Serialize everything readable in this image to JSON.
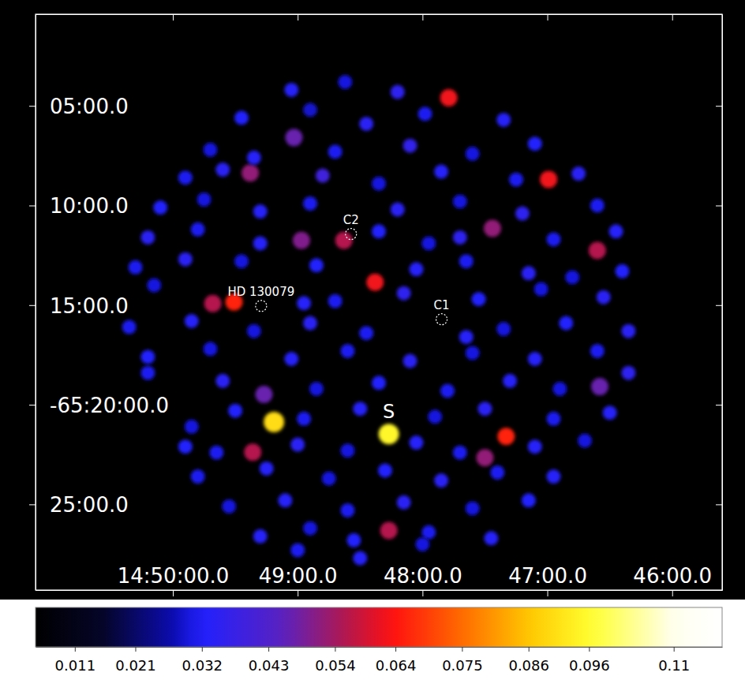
{
  "chart_data": {
    "type": "image",
    "xlim": [
      51.1,
      45.6
    ],
    "xticks": [
      {
        "value": 50,
        "label": "14:50:00.0"
      },
      {
        "value": 49,
        "label": "49:00.0"
      },
      {
        "value": 48,
        "label": "48:00.0"
      },
      {
        "value": 47,
        "label": "47:00.0"
      },
      {
        "value": 46,
        "label": "46:00.0"
      }
    ],
    "ylim": [
      -3929.3,
      -3900.4
    ],
    "yticks": [
      {
        "value": -3905,
        "label": "05:00.0"
      },
      {
        "value": -3910,
        "label": "10:00.0"
      },
      {
        "value": -3915,
        "label": "15:00.0"
      },
      {
        "value": -3920,
        "label": "-65:20:00.0"
      },
      {
        "value": -3925,
        "label": "25:00.0"
      }
    ],
    "cells": [
      [
        48.27,
        -3921.47,
        0.095
      ],
      [
        49.19,
        -3920.87,
        0.09
      ],
      [
        49.51,
        -3914.84,
        0.066
      ],
      [
        49.68,
        -3914.92,
        0.056
      ],
      [
        47.79,
        -3904.6,
        0.062
      ],
      [
        46.99,
        -3908.69,
        0.062
      ],
      [
        46.6,
        -3912.26,
        0.056
      ],
      [
        47.44,
        -3911.15,
        0.052
      ],
      [
        48.38,
        -3913.85,
        0.062
      ],
      [
        48.63,
        -3911.75,
        0.056
      ],
      [
        48.97,
        -3911.75,
        0.05
      ],
      [
        49.38,
        -3908.37,
        0.052
      ],
      [
        49.03,
        -3906.59,
        0.047
      ],
      [
        47.33,
        -3921.59,
        0.066
      ],
      [
        47.5,
        -3922.66,
        0.052
      ],
      [
        49.36,
        -3922.38,
        0.056
      ],
      [
        48.27,
        -3926.31,
        0.056
      ],
      [
        49.27,
        -3919.48,
        0.047
      ],
      [
        46.58,
        -3919.09,
        0.047
      ],
      [
        49.05,
        -3904.2,
        0.033
      ],
      [
        48.62,
        -3903.8,
        0.03
      ],
      [
        48.2,
        -3904.3,
        0.035
      ],
      [
        49.45,
        -3905.6,
        0.032
      ],
      [
        48.9,
        -3905.2,
        0.029
      ],
      [
        48.45,
        -3905.9,
        0.034
      ],
      [
        47.98,
        -3905.4,
        0.031
      ],
      [
        47.35,
        -3905.7,
        0.033
      ],
      [
        49.7,
        -3907.2,
        0.03
      ],
      [
        49.35,
        -3907.6,
        0.033
      ],
      [
        48.7,
        -3907.3,
        0.031
      ],
      [
        48.1,
        -3907.0,
        0.036
      ],
      [
        47.6,
        -3907.4,
        0.03
      ],
      [
        47.1,
        -3906.9,
        0.032
      ],
      [
        49.9,
        -3908.6,
        0.031
      ],
      [
        49.6,
        -3908.2,
        0.034
      ],
      [
        48.8,
        -3908.5,
        0.039
      ],
      [
        48.35,
        -3908.9,
        0.03
      ],
      [
        47.85,
        -3908.3,
        0.033
      ],
      [
        47.25,
        -3908.7,
        0.031
      ],
      [
        46.75,
        -3908.4,
        0.034
      ],
      [
        50.1,
        -3910.1,
        0.032
      ],
      [
        49.75,
        -3909.7,
        0.03
      ],
      [
        49.3,
        -3910.3,
        0.033
      ],
      [
        48.9,
        -3909.9,
        0.031
      ],
      [
        48.2,
        -3910.2,
        0.034
      ],
      [
        47.7,
        -3909.8,
        0.03
      ],
      [
        47.2,
        -3910.4,
        0.035
      ],
      [
        46.6,
        -3910.0,
        0.031
      ],
      [
        50.2,
        -3911.6,
        0.034
      ],
      [
        49.8,
        -3911.2,
        0.031
      ],
      [
        49.3,
        -3911.9,
        0.033
      ],
      [
        48.35,
        -3911.3,
        0.032
      ],
      [
        47.95,
        -3911.9,
        0.03
      ],
      [
        47.7,
        -3911.6,
        0.035
      ],
      [
        46.95,
        -3911.7,
        0.031
      ],
      [
        46.45,
        -3911.3,
        0.033
      ],
      [
        50.3,
        -3913.1,
        0.031
      ],
      [
        49.9,
        -3912.7,
        0.034
      ],
      [
        49.45,
        -3912.8,
        0.03
      ],
      [
        48.85,
        -3913.0,
        0.032
      ],
      [
        48.05,
        -3913.2,
        0.033
      ],
      [
        47.65,
        -3912.8,
        0.031
      ],
      [
        47.15,
        -3913.4,
        0.034
      ],
      [
        46.8,
        -3913.6,
        0.03
      ],
      [
        46.4,
        -3913.3,
        0.032
      ],
      [
        50.15,
        -3914.0,
        0.03
      ],
      [
        48.95,
        -3914.9,
        0.033
      ],
      [
        48.7,
        -3914.8,
        0.031
      ],
      [
        48.15,
        -3914.4,
        0.035
      ],
      [
        47.55,
        -3914.7,
        0.032
      ],
      [
        47.05,
        -3914.2,
        0.03
      ],
      [
        46.55,
        -3914.6,
        0.034
      ],
      [
        50.35,
        -3916.1,
        0.031
      ],
      [
        49.85,
        -3915.8,
        0.033
      ],
      [
        49.35,
        -3916.3,
        0.03
      ],
      [
        48.9,
        -3915.9,
        0.034
      ],
      [
        48.45,
        -3916.4,
        0.031
      ],
      [
        47.65,
        -3916.6,
        0.033
      ],
      [
        47.35,
        -3916.2,
        0.03
      ],
      [
        46.85,
        -3915.9,
        0.032
      ],
      [
        46.35,
        -3916.3,
        0.034
      ],
      [
        50.2,
        -3917.6,
        0.032
      ],
      [
        49.7,
        -3917.2,
        0.03
      ],
      [
        49.05,
        -3917.7,
        0.033
      ],
      [
        48.6,
        -3917.3,
        0.031
      ],
      [
        48.1,
        -3917.8,
        0.034
      ],
      [
        47.6,
        -3917.4,
        0.03
      ],
      [
        47.1,
        -3917.7,
        0.033
      ],
      [
        46.6,
        -3917.3,
        0.031
      ],
      [
        50.2,
        -3918.4,
        0.031
      ],
      [
        49.6,
        -3918.8,
        0.034
      ],
      [
        48.85,
        -3919.2,
        0.03
      ],
      [
        48.35,
        -3918.9,
        0.032
      ],
      [
        47.8,
        -3919.3,
        0.031
      ],
      [
        47.3,
        -3918.8,
        0.033
      ],
      [
        46.9,
        -3919.2,
        0.03
      ],
      [
        46.35,
        -3918.4,
        0.035
      ],
      [
        49.85,
        -3921.1,
        0.03
      ],
      [
        49.5,
        -3920.3,
        0.032
      ],
      [
        48.95,
        -3920.7,
        0.031
      ],
      [
        48.5,
        -3920.2,
        0.033
      ],
      [
        47.9,
        -3920.6,
        0.03
      ],
      [
        47.5,
        -3920.2,
        0.034
      ],
      [
        46.95,
        -3920.7,
        0.031
      ],
      [
        46.5,
        -3920.4,
        0.033
      ],
      [
        49.9,
        -3922.1,
        0.032
      ],
      [
        49.65,
        -3922.4,
        0.031
      ],
      [
        49.0,
        -3922.0,
        0.034
      ],
      [
        48.6,
        -3922.3,
        0.03
      ],
      [
        48.05,
        -3921.9,
        0.033
      ],
      [
        47.7,
        -3922.4,
        0.031
      ],
      [
        47.1,
        -3922.1,
        0.033
      ],
      [
        46.7,
        -3921.8,
        0.03
      ],
      [
        49.8,
        -3923.6,
        0.031
      ],
      [
        49.25,
        -3923.2,
        0.033
      ],
      [
        48.75,
        -3923.7,
        0.03
      ],
      [
        48.3,
        -3923.3,
        0.032
      ],
      [
        47.85,
        -3923.8,
        0.034
      ],
      [
        47.4,
        -3923.4,
        0.031
      ],
      [
        46.95,
        -3923.6,
        0.033
      ],
      [
        49.55,
        -3925.1,
        0.03
      ],
      [
        49.1,
        -3924.8,
        0.033
      ],
      [
        48.6,
        -3925.3,
        0.031
      ],
      [
        48.15,
        -3924.9,
        0.034
      ],
      [
        47.6,
        -3925.2,
        0.03
      ],
      [
        47.15,
        -3924.8,
        0.032
      ],
      [
        49.3,
        -3926.6,
        0.033
      ],
      [
        48.9,
        -3926.2,
        0.03
      ],
      [
        48.55,
        -3926.8,
        0.032
      ],
      [
        47.95,
        -3926.4,
        0.031
      ],
      [
        47.45,
        -3926.7,
        0.033
      ],
      [
        49.0,
        -3927.3,
        0.031
      ],
      [
        48.5,
        -3927.7,
        0.033
      ],
      [
        48.0,
        -3927.0,
        0.03
      ]
    ],
    "colorbar": {
      "range": [
        0.0045,
        0.118
      ],
      "ticks": [
        0.011,
        0.021,
        0.032,
        0.043,
        0.054,
        0.064,
        0.075,
        0.086,
        0.096,
        0.11
      ]
    },
    "annotations": [
      {
        "text": "C2",
        "x": 48.573,
        "y": -3911.43,
        "marker": "circle"
      },
      {
        "text": "HD 130079",
        "x": 49.293,
        "y": -3915.04,
        "marker": "circle"
      },
      {
        "text": "C1",
        "x": 47.847,
        "y": -3915.71,
        "marker": "circle"
      },
      {
        "text": "S",
        "x": 48.27,
        "y": -3921.47
      }
    ]
  }
}
